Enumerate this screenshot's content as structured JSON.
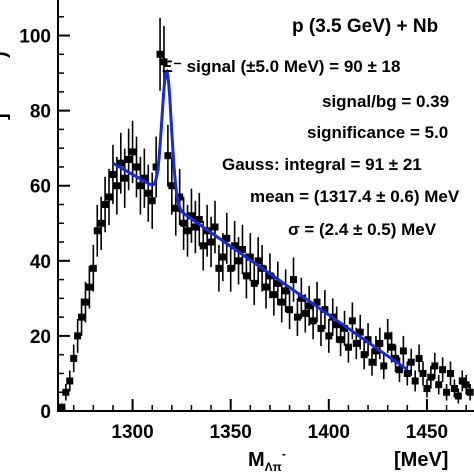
{
  "chart_data": {
    "type": "scatter",
    "title": "",
    "xlabel": "M",
    "xlabel_sub": "Λπ",
    "xlabel_sup": "-",
    "xunit": "[MeV]",
    "xlim": [
      1262,
      1475
    ],
    "ylim": [
      0,
      110
    ],
    "xticks": [
      1300,
      1350,
      1400,
      1450
    ],
    "yticks": [
      0,
      20,
      40,
      60,
      80,
      100
    ],
    "grid": false,
    "annotations": {
      "reaction": "p (3.5 GeV)  +  Nb",
      "signal": "Ξ⁻ signal (±5.0 MeV) = 90 ± 18",
      "signal_bg": "signal/bg = 0.39",
      "significance": "significance = 5.0",
      "gauss": "Gauss:    integral = 91 ± 21",
      "mean": "mean = (1317.4 ± 0.6) MeV",
      "sigma": "σ = (2.4 ± 0.5) MeV"
    },
    "series": [
      {
        "style": "points-with-errors",
        "color": "#000000",
        "x": [
          1264,
          1266,
          1268,
          1270,
          1272,
          1274,
          1276,
          1278,
          1280,
          1282,
          1284,
          1286,
          1288,
          1290,
          1292,
          1294,
          1296,
          1298,
          1300,
          1302,
          1304,
          1306,
          1308,
          1310,
          1312,
          1314,
          1316,
          1318,
          1320,
          1322,
          1324,
          1326,
          1328,
          1330,
          1332,
          1334,
          1336,
          1338,
          1340,
          1342,
          1344,
          1346,
          1348,
          1350,
          1352,
          1354,
          1356,
          1358,
          1360,
          1362,
          1364,
          1366,
          1368,
          1370,
          1372,
          1374,
          1376,
          1378,
          1380,
          1382,
          1384,
          1386,
          1388,
          1390,
          1392,
          1394,
          1396,
          1398,
          1400,
          1402,
          1404,
          1406,
          1408,
          1410,
          1412,
          1414,
          1416,
          1418,
          1420,
          1422,
          1424,
          1426,
          1428,
          1430,
          1432,
          1434,
          1436,
          1438,
          1440,
          1442,
          1444,
          1446,
          1448,
          1450,
          1452,
          1454,
          1456,
          1458,
          1460,
          1462,
          1464,
          1466,
          1468,
          1470,
          1472
        ],
        "y": [
          1,
          5,
          8,
          14,
          20,
          25,
          29,
          33,
          38,
          48,
          50,
          55,
          57,
          63,
          60,
          66,
          62,
          67,
          69,
          65,
          60,
          62,
          58,
          56,
          65,
          95,
          93,
          68,
          60,
          54,
          57,
          50,
          48,
          52,
          49,
          51,
          44,
          48,
          45,
          49,
          38,
          41,
          46,
          38,
          44,
          40,
          43,
          36,
          41,
          34,
          40,
          38,
          33,
          36,
          31,
          34,
          29,
          32,
          27,
          35,
          25,
          30,
          26,
          28,
          24,
          29,
          22,
          27,
          20,
          25,
          23,
          19,
          22,
          17,
          24,
          18,
          21,
          15,
          19,
          13,
          16,
          18,
          12,
          20,
          17,
          14,
          11,
          16,
          10,
          13,
          8,
          14,
          10,
          6,
          9,
          12,
          7,
          11,
          5,
          10,
          6,
          4,
          8,
          7,
          5
        ],
        "yerr": [
          1,
          2.2,
          2.8,
          3.7,
          4.5,
          5,
          5.4,
          5.7,
          6.2,
          6.9,
          7.1,
          7.4,
          7.5,
          7.9,
          7.7,
          8.1,
          7.9,
          8.2,
          8.3,
          8.1,
          7.7,
          7.9,
          7.6,
          7.5,
          8.1,
          9.7,
          9.6,
          8.2,
          7.7,
          7.3,
          7.5,
          7.1,
          6.9,
          7.2,
          7,
          7.1,
          6.6,
          6.9,
          6.7,
          7,
          6.2,
          6.4,
          6.8,
          6.2,
          6.6,
          6.3,
          6.6,
          6,
          6.4,
          5.8,
          6.3,
          6.2,
          5.7,
          6,
          5.6,
          5.8,
          5.4,
          5.7,
          5.2,
          5.9,
          5,
          5.5,
          5.1,
          5.3,
          4.9,
          5.4,
          4.7,
          5.2,
          4.5,
          5,
          4.8,
          4.4,
          4.7,
          4.1,
          4.9,
          4.2,
          4.6,
          3.9,
          4.4,
          3.6,
          4,
          4.2,
          3.5,
          4.5,
          4.1,
          3.7,
          3.3,
          4,
          3.2,
          3.6,
          2.8,
          3.7,
          3.2,
          2.4,
          3,
          3.5,
          2.6,
          3.3,
          2.2,
          3.2,
          2.4,
          2,
          2.8,
          2.6,
          2.2
        ]
      },
      {
        "style": "fit-line",
        "color": "#1a2bd6",
        "bg_x": [
          1290,
          1310,
          1325,
          1440
        ],
        "bg_y": [
          66,
          60,
          53,
          11
        ],
        "peak_mean": 1317.4,
        "peak_sigma": 2.4,
        "peak_height": 34
      }
    ]
  }
}
